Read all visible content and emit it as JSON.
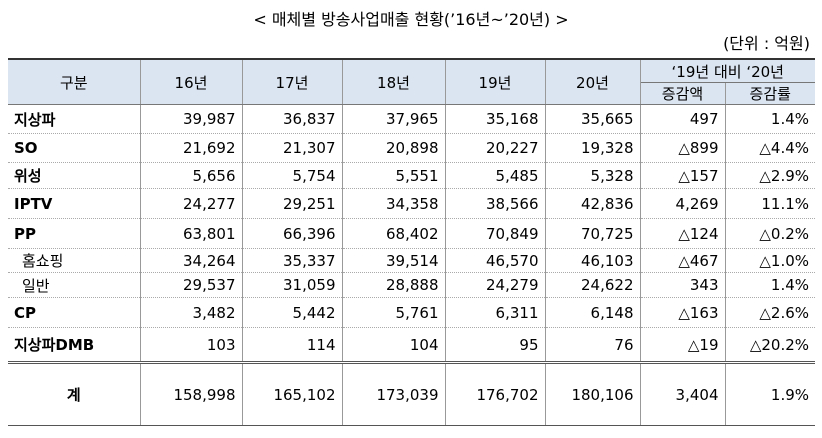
{
  "header": {
    "title": "< 매체별 방송사업매출 현황(’16년~’20년) >",
    "unit": "(단위 : 억원)"
  },
  "table": {
    "columns": [
      "구분",
      "16년",
      "17년",
      "18년",
      "19년",
      "20년"
    ],
    "compare_header": "‘19년 대비 ‘20년",
    "compare_columns": [
      "증감액",
      "증감률"
    ],
    "rows": [
      [
        "지상파",
        "39,987",
        "36,837",
        "37,965",
        "35,168",
        "35,665",
        "497",
        "1.4%"
      ],
      [
        "SO",
        "21,692",
        "21,307",
        "20,898",
        "20,227",
        "19,328",
        "△899",
        "△4.4%"
      ],
      [
        "위성",
        "5,656",
        "5,754",
        "5,551",
        "5,485",
        "5,328",
        "△157",
        "△2.9%"
      ],
      [
        "IPTV",
        "24,277",
        "29,251",
        "34,358",
        "38,566",
        "42,836",
        "4,269",
        "11.1%"
      ],
      [
        "PP",
        "63,801",
        "66,396",
        "68,402",
        "70,849",
        "70,725",
        "△124",
        "△0.2%"
      ],
      [
        "홈쇼핑",
        "34,264",
        "35,337",
        "39,514",
        "46,570",
        "46,103",
        "△467",
        "△1.0%"
      ],
      [
        "일반",
        "29,537",
        "31,059",
        "28,888",
        "24,279",
        "24,622",
        "343",
        "1.4%"
      ],
      [
        "CP",
        "3,482",
        "5,442",
        "5,761",
        "6,311",
        "6,148",
        "△163",
        "△2.6%"
      ],
      [
        "지상파DMB",
        "103",
        "114",
        "104",
        "95",
        "76",
        "△19",
        "△20.2%"
      ],
      [
        "계",
        "158,998",
        "165,102",
        "173,039",
        "176,702",
        "180,106",
        "3,404",
        "1.9%"
      ]
    ]
  }
}
